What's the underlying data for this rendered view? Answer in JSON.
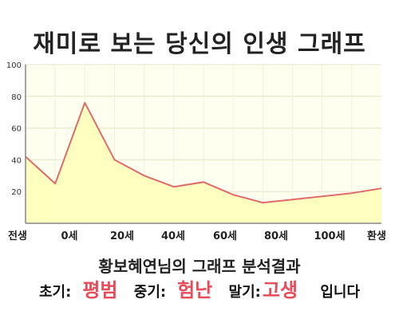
{
  "title": "재미로 보는 당신의 인생 그래프",
  "subtitle": "황보혜연님의 그래프 분석결과",
  "summary": {
    "early_label": "초기:",
    "early_value": "평범",
    "mid_label": "중기:",
    "mid_value": "험난",
    "late_label": "말기:",
    "late_value": "고생",
    "tail": "입니다"
  },
  "colors": {
    "line": "#e06a6a",
    "fill": "#ffffc0",
    "plot_bg": "#fffff0",
    "highlight": "#e74c5b"
  },
  "chart_data": {
    "type": "area",
    "title": "재미로 보는 당신의 인생 그래프",
    "xlabel": "",
    "ylabel": "",
    "ylim": [
      0,
      100
    ],
    "yticks": [
      20,
      40,
      60,
      80,
      100
    ],
    "xticks": [
      "전생",
      "0세",
      "20세",
      "40세",
      "60세",
      "80세",
      "100세",
      "환생"
    ],
    "grid": true,
    "series": [
      {
        "values": [
          42,
          25,
          76,
          40,
          30,
          23,
          26,
          18,
          13,
          15,
          17,
          19,
          22
        ]
      }
    ]
  }
}
